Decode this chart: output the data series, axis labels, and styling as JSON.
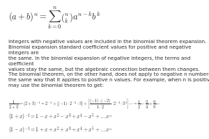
{
  "title_formula": "$(a + b)^n = \\sum_{k=0}^{n} \\binom{n}{k} a^{n-k} b^k$",
  "para1": "Integers with negative values are included in the binomial theorem expansion.\nBinomial expansion standard coefficient values for positive and negative integers are\nthe same. In the binomial expansion of negative integers, the terms and coefficient\nvalues stay the same, but the algebraic connection between them changes.",
  "para2": "The binomial theorem, on the other hand, does not apply to negative n numbers in\nthe same way that it applies to positive n values. For example, when n is positive, we\nmay use the binomial theorem to get:",
  "formula_line": "$\\dfrac{1}{2+3} = (2+3)^{-1} = 2^{-1} + \\left[(-1)\\cdot 2^{-2}\\cdot 3\\right] + \\left[\\dfrac{(-1)\\cdot(-2)}{1\\cdot 2}\\cdot 2^{-3}\\cdot 3^2\\right] \\cdots = \\dfrac{1}{2} - \\dfrac{3}{4} + \\dfrac{9}{8}\\cdots$",
  "eq1": "$(1 + x)^{-1} = 1 - x + x^2 - x^3 + x^4 - x^5 + \\ldots x^n$",
  "eq2": "$(1 - x)^{-1} = 1 + x + x^2 + x^3 + x^4 + x^5 + \\ldots x^n$",
  "bg_color": "#ffffff",
  "text_color": "#2d2d2d",
  "font_size_formula": 9,
  "font_size_text": 5.2,
  "font_size_eq": 5.5
}
